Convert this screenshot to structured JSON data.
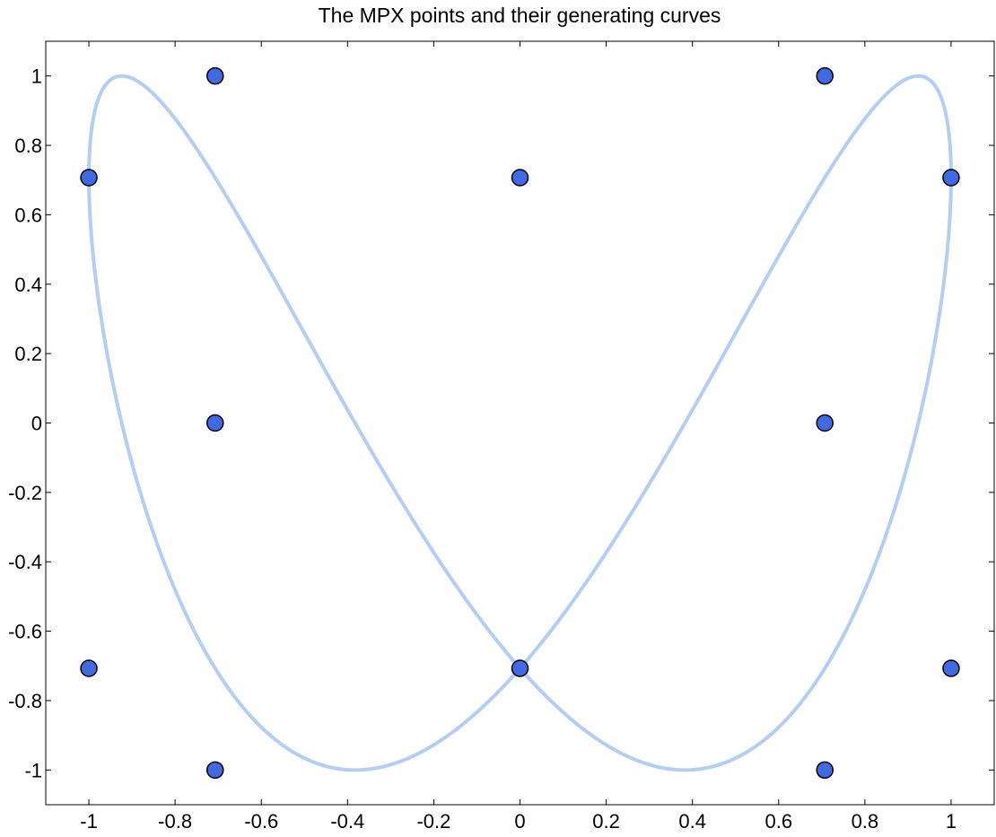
{
  "chart_data": {
    "type": "scatter",
    "title": "The MPX points and their generating curves",
    "xlabel": "",
    "ylabel": "",
    "xlim": [
      -1.1,
      1.1
    ],
    "ylim": [
      -1.1,
      1.1
    ],
    "x_ticks": [
      -1,
      -0.8,
      -0.6,
      -0.4,
      -0.2,
      0,
      0.2,
      0.4,
      0.6,
      0.8,
      1
    ],
    "x_tick_labels": [
      "-1",
      "-0.8",
      "-0.6",
      "-0.4",
      "-0.2",
      "0",
      "0.2",
      "0.4",
      "0.6",
      "0.8",
      "1"
    ],
    "y_ticks": [
      -1,
      -0.8,
      -0.6,
      -0.4,
      -0.2,
      0,
      0.2,
      0.4,
      0.6,
      0.8,
      1
    ],
    "y_tick_labels": [
      "-1",
      "-0.8",
      "-0.6",
      "-0.4",
      "-0.2",
      "0",
      "0.2",
      "0.4",
      "0.6",
      "0.8",
      "1"
    ],
    "grid": false,
    "legend": "none",
    "curves": [
      {
        "kind": "parametric",
        "x_expr": "cos(t)",
        "y_expr": "sin(2*t + pi/4)",
        "t_range": [
          0,
          6.2832
        ],
        "color": "#b4cdf2"
      }
    ],
    "points": {
      "x": [
        -0.7071,
        0.7071,
        -1,
        0,
        1,
        -0.7071,
        0.7071,
        -1,
        0,
        1,
        -0.7071,
        0.7071
      ],
      "y": [
        1,
        1,
        0.7071,
        0.7071,
        0.7071,
        0,
        0,
        -0.7071,
        -0.7071,
        -0.7071,
        -1,
        -1
      ],
      "fill": "#4169e1",
      "edge": "#000000"
    }
  }
}
